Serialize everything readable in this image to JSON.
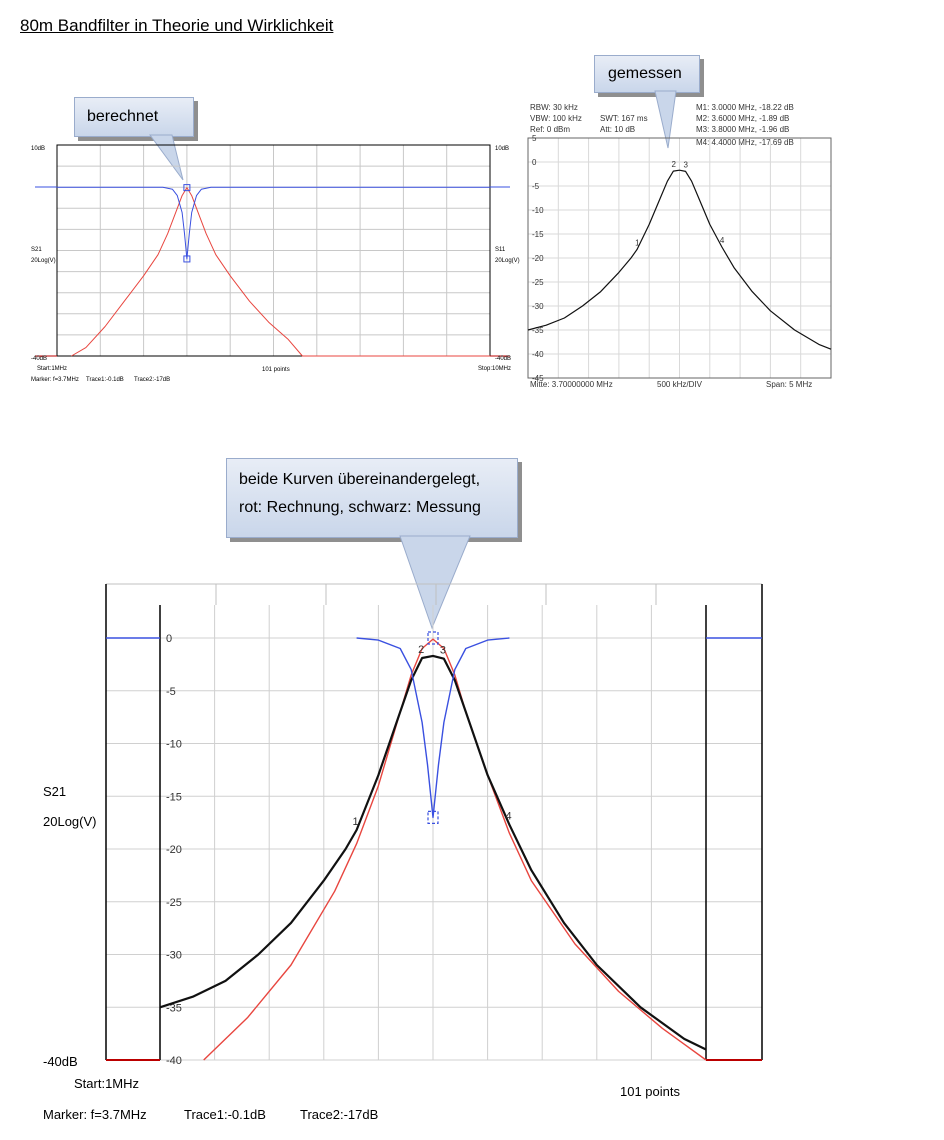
{
  "page_title": "80m Bandfilter in Theorie und Wirklichkeit",
  "callouts": {
    "computed": "berechnet",
    "measured": "gemessen",
    "overlay_line1": "beide Kurven übereinandergelegt,",
    "overlay_line2": "rot: Rechnung, schwarz: Messung"
  },
  "colors": {
    "computed": "#e8463f",
    "measured": "#111111",
    "s11": "#3a50e0",
    "grid": "#c8c8c8"
  },
  "chart_data": [
    {
      "type": "line",
      "labels": {
        "top_left": "10dB",
        "top_right": "10dB",
        "s21": "S21",
        "s11": "S11",
        "left_unit": "20Log(V)",
        "right_unit": "20Log(V)",
        "bottom_left": "-40dB",
        "bottom_right": "-40dB",
        "start": "Start:1MHz",
        "points": "101 points",
        "stop": "Stop:10MHz",
        "marker": "Marker: f=3.7MHz",
        "trace1": "Trace1:-0.1dB",
        "trace2": "Trace2:-17dB"
      },
      "xlim": [
        1,
        10
      ],
      "ylim": [
        -40,
        10
      ],
      "series": [
        {
          "key": "s21",
          "color": "#e8463f",
          "x": [
            1.3,
            1.6,
            2.0,
            2.4,
            2.8,
            3.1,
            3.3,
            3.5,
            3.6,
            3.7,
            3.8,
            3.9,
            4.1,
            4.3,
            4.6,
            5.0,
            5.4,
            5.8,
            6.1,
            10.0
          ],
          "y": [
            -40,
            -38,
            -33,
            -27,
            -21,
            -16,
            -11,
            -5,
            -2,
            -0.1,
            -2,
            -5,
            -11,
            -16,
            -21,
            -27,
            -32,
            -36,
            -40,
            -40
          ]
        },
        {
          "key": "s11",
          "color": "#3a50e0",
          "x": [
            1,
            3.2,
            3.4,
            3.5,
            3.6,
            3.65,
            3.7,
            3.75,
            3.8,
            3.9,
            4.0,
            4.2,
            10.0
          ],
          "y": [
            0,
            0,
            -0.5,
            -2,
            -6,
            -11,
            -17,
            -11,
            -6,
            -2,
            -0.5,
            0,
            0
          ]
        }
      ],
      "markers": [
        {
          "x": 3.7,
          "y": -0.1
        },
        {
          "x": 3.7,
          "y": -17
        }
      ]
    },
    {
      "type": "line",
      "settings": {
        "rbw": "RBW: 30 kHz",
        "vbw": "VBW: 100 kHz",
        "ref": "Ref: 0 dBm",
        "swt": "SWT: 167 ms",
        "att": "Att: 10 dB"
      },
      "marker_readouts": [
        "M1: 3.0000 MHz, -18.22 dB",
        "M2: 3.6000 MHz, -1.89 dB",
        "M3: 3.8000 MHz, -1.96 dB",
        "M4: 4.4000 MHz, -17.69 dB"
      ],
      "y_ticks": [
        "5",
        "0",
        "-5",
        "-10",
        "-15",
        "-20",
        "-25",
        "-30",
        "-35",
        "-40",
        "-45"
      ],
      "center_label": "Mitte: 3.70000000 MHz",
      "div_label": "500 kHz/DIV",
      "span_label": "Span: 5 MHz",
      "xlim": [
        1.2,
        6.2
      ],
      "ylim": [
        -45,
        5
      ],
      "marker_numbers": [
        "1",
        "2",
        "3",
        "4"
      ],
      "series": [
        {
          "key": "measured",
          "color": "#111111",
          "x": [
            1.2,
            1.5,
            1.8,
            2.1,
            2.4,
            2.7,
            2.9,
            3.0,
            3.2,
            3.4,
            3.5,
            3.6,
            3.7,
            3.8,
            3.9,
            4.0,
            4.2,
            4.4,
            4.6,
            4.9,
            5.2,
            5.6,
            6.0,
            6.2
          ],
          "y": [
            -35,
            -34,
            -32.5,
            -30,
            -27,
            -23,
            -20,
            -18.2,
            -13,
            -7,
            -4,
            -1.9,
            -1.7,
            -1.96,
            -4,
            -7,
            -13,
            -17.7,
            -22,
            -27,
            -31,
            -35,
            -38,
            -39
          ]
        }
      ],
      "markers": [
        {
          "x": 3.0,
          "y": -18.22
        },
        {
          "x": 3.6,
          "y": -1.89
        },
        {
          "x": 3.8,
          "y": -1.96
        },
        {
          "x": 4.4,
          "y": -17.69
        }
      ]
    },
    {
      "type": "line",
      "y_ticks": [
        "0",
        "-5",
        "-10",
        "-15",
        "-20",
        "-25",
        "-30",
        "-35",
        "-40"
      ],
      "labels": {
        "s21": "S21",
        "unit": "20Log(V)",
        "bottom_left": "-40dB",
        "start": "Start:1MHz",
        "points": "101 points",
        "marker": "Marker: f=3.7MHz",
        "trace1": "Trace1:-0.1dB",
        "trace2": "Trace2:-17dB"
      },
      "marker_numbers": [
        "1",
        "2",
        "3",
        "4"
      ],
      "xlim": [
        1.2,
        6.2
      ],
      "ylim": [
        -40,
        0
      ],
      "series": [
        {
          "key": "computed",
          "color": "#e8463f",
          "x": [
            1.6,
            2.0,
            2.4,
            2.8,
            3.0,
            3.2,
            3.4,
            3.5,
            3.6,
            3.7,
            3.8,
            3.9,
            4.0,
            4.2,
            4.4,
            4.6,
            5.0,
            5.4,
            5.8,
            6.0,
            6.2
          ],
          "y": [
            -40,
            -36,
            -31,
            -24,
            -19.5,
            -14,
            -7,
            -3.5,
            -1,
            -0.1,
            -1,
            -3.5,
            -7,
            -13,
            -18.5,
            -23,
            -29,
            -33.5,
            -37,
            -38.5,
            -40
          ]
        },
        {
          "key": "measured",
          "color": "#111111",
          "x": [
            1.2,
            1.5,
            1.8,
            2.1,
            2.4,
            2.7,
            2.9,
            3.0,
            3.2,
            3.4,
            3.5,
            3.6,
            3.7,
            3.8,
            3.9,
            4.0,
            4.2,
            4.4,
            4.6,
            4.9,
            5.2,
            5.6,
            6.0,
            6.2
          ],
          "y": [
            -35,
            -34,
            -32.5,
            -30,
            -27,
            -23,
            -20,
            -18.2,
            -13,
            -7,
            -4,
            -1.9,
            -1.7,
            -1.96,
            -4,
            -7,
            -13,
            -17.7,
            -22,
            -27,
            -31,
            -35,
            -38,
            -39
          ]
        },
        {
          "key": "s11",
          "color": "#3a50e0",
          "x": [
            3.0,
            3.2,
            3.4,
            3.5,
            3.6,
            3.65,
            3.7,
            3.75,
            3.8,
            3.9,
            4.0,
            4.2,
            4.4
          ],
          "y": [
            0,
            -0.2,
            -1,
            -3,
            -8,
            -12,
            -17,
            -12,
            -8,
            -3,
            -1,
            -0.2,
            0
          ]
        }
      ],
      "markers": [
        {
          "x": 3.0,
          "y": -18.22
        },
        {
          "x": 3.6,
          "y": -1.89
        },
        {
          "x": 3.8,
          "y": -1.96
        },
        {
          "x": 4.4,
          "y": -17.69
        }
      ]
    }
  ]
}
